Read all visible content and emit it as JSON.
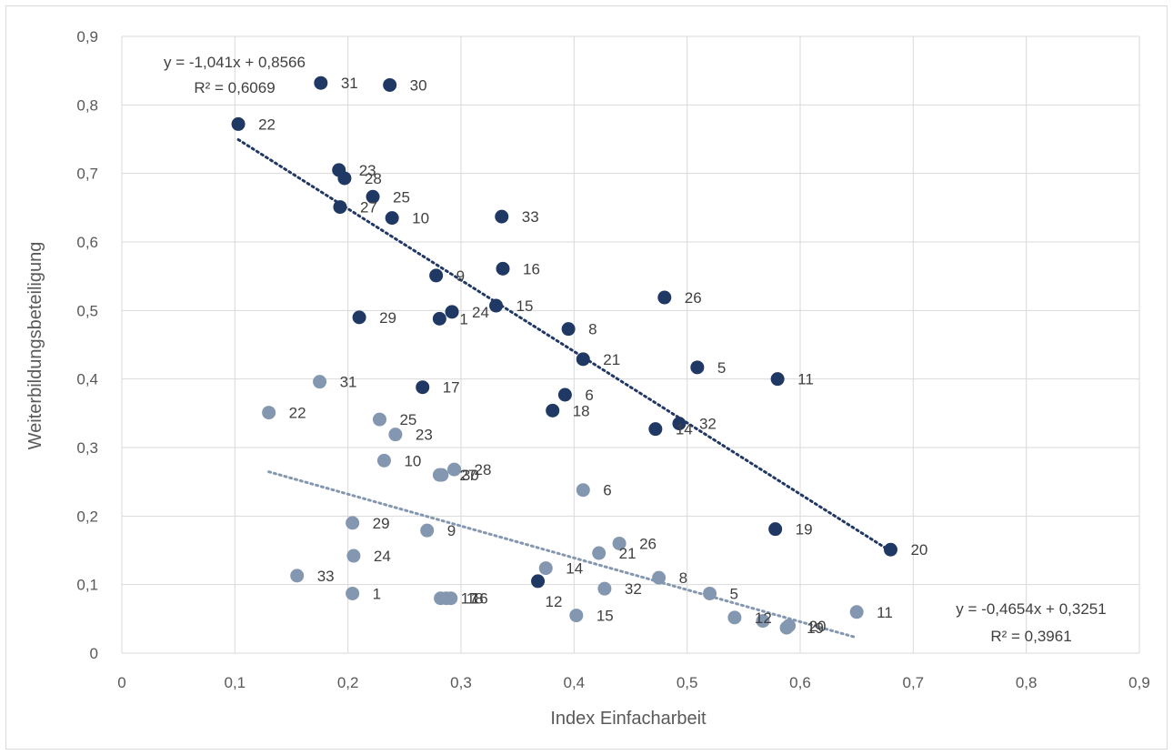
{
  "chart_data": {
    "type": "scatter",
    "title": "",
    "xlabel": "Index Einfacharbeit",
    "ylabel": "Weiterbildungsbeteiligung",
    "xlim": [
      0,
      0.9
    ],
    "ylim": [
      0,
      0.9
    ],
    "x_ticks": [
      "0",
      "0,1",
      "0,2",
      "0,3",
      "0,4",
      "0,5",
      "0,6",
      "0,7",
      "0,8",
      "0,9"
    ],
    "y_ticks": [
      "0",
      "0,1",
      "0,2",
      "0,3",
      "0,4",
      "0,5",
      "0,6",
      "0,7",
      "0,8",
      "0,9"
    ],
    "grid": "horizontal and vertical major gridlines",
    "legend": "none",
    "colors": {
      "dark_series": "#203864",
      "light_series": "#8497b0",
      "grid": "#d9d9d9"
    },
    "series": [
      {
        "color": "#203864",
        "points": [
          {
            "label": "31",
            "x": 0.176,
            "y": 0.832
          },
          {
            "label": "30",
            "x": 0.237,
            "y": 0.829
          },
          {
            "label": "22",
            "x": 0.103,
            "y": 0.772
          },
          {
            "label": "23",
            "x": 0.192,
            "y": 0.705
          },
          {
            "label": "28",
            "x": 0.197,
            "y": 0.693
          },
          {
            "label": "25",
            "x": 0.222,
            "y": 0.666
          },
          {
            "label": "27",
            "x": 0.193,
            "y": 0.651
          },
          {
            "label": "10",
            "x": 0.239,
            "y": 0.635
          },
          {
            "label": "33",
            "x": 0.336,
            "y": 0.637
          },
          {
            "label": "16",
            "x": 0.337,
            "y": 0.561
          },
          {
            "label": "9",
            "x": 0.278,
            "y": 0.551
          },
          {
            "label": "26",
            "x": 0.48,
            "y": 0.519
          },
          {
            "label": "15",
            "x": 0.331,
            "y": 0.507
          },
          {
            "label": "24",
            "x": 0.292,
            "y": 0.498
          },
          {
            "label": "29",
            "x": 0.21,
            "y": 0.49
          },
          {
            "label": "1",
            "x": 0.281,
            "y": 0.488
          },
          {
            "label": "8",
            "x": 0.395,
            "y": 0.473
          },
          {
            "label": "21",
            "x": 0.408,
            "y": 0.429
          },
          {
            "label": "5",
            "x": 0.509,
            "y": 0.417
          },
          {
            "label": "11",
            "x": 0.58,
            "y": 0.4
          },
          {
            "label": "17",
            "x": 0.266,
            "y": 0.388
          },
          {
            "label": "6",
            "x": 0.392,
            "y": 0.377
          },
          {
            "label": "18",
            "x": 0.381,
            "y": 0.354
          },
          {
            "label": "32",
            "x": 0.493,
            "y": 0.335
          },
          {
            "label": "14",
            "x": 0.472,
            "y": 0.327
          },
          {
            "label": "19",
            "x": 0.578,
            "y": 0.181
          },
          {
            "label": "20",
            "x": 0.68,
            "y": 0.151
          },
          {
            "label": "",
            "x": 0.368,
            "y": 0.105
          }
        ],
        "trendline": {
          "equation": "y = -1,041x + 0,8566",
          "r_squared": "R² = 0,6069",
          "slope": -1.041,
          "intercept": 0.8566,
          "x_range": [
            0.103,
            0.68
          ]
        }
      },
      {
        "color": "#8497b0",
        "points": [
          {
            "label": "31",
            "x": 0.175,
            "y": 0.396
          },
          {
            "label": "22",
            "x": 0.13,
            "y": 0.351
          },
          {
            "label": "25",
            "x": 0.228,
            "y": 0.341
          },
          {
            "label": "23",
            "x": 0.242,
            "y": 0.319
          },
          {
            "label": "10",
            "x": 0.232,
            "y": 0.281
          },
          {
            "label": "28",
            "x": 0.294,
            "y": 0.268
          },
          {
            "label": "27",
            "x": 0.281,
            "y": 0.26
          },
          {
            "label": "30",
            "x": 0.283,
            "y": 0.26
          },
          {
            "label": "6",
            "x": 0.408,
            "y": 0.238
          },
          {
            "label": "29",
            "x": 0.204,
            "y": 0.19
          },
          {
            "label": "9",
            "x": 0.27,
            "y": 0.179
          },
          {
            "label": "26",
            "x": 0.44,
            "y": 0.16
          },
          {
            "label": "21",
            "x": 0.422,
            "y": 0.146
          },
          {
            "label": "24",
            "x": 0.205,
            "y": 0.142
          },
          {
            "label": "14",
            "x": 0.375,
            "y": 0.124
          },
          {
            "label": "33",
            "x": 0.155,
            "y": 0.113
          },
          {
            "label": "8",
            "x": 0.475,
            "y": 0.11
          },
          {
            "label": "32",
            "x": 0.427,
            "y": 0.094
          },
          {
            "label": "1",
            "x": 0.204,
            "y": 0.087
          },
          {
            "label": "5",
            "x": 0.52,
            "y": 0.087
          },
          {
            "label": "17",
            "x": 0.282,
            "y": 0.08
          },
          {
            "label": "16",
            "x": 0.291,
            "y": 0.08
          },
          {
            "label": "18",
            "x": 0.287,
            "y": 0.08
          },
          {
            "label": "11",
            "x": 0.65,
            "y": 0.06
          },
          {
            "label": "15",
            "x": 0.402,
            "y": 0.055
          },
          {
            "label": "12",
            "x": 0.542,
            "y": 0.052
          },
          {
            "label": "",
            "x": 0.567,
            "y": 0.047
          },
          {
            "label": "19",
            "x": 0.588,
            "y": 0.037
          },
          {
            "label": "20",
            "x": 0.59,
            "y": 0.04
          }
        ],
        "trendline": {
          "equation": "y = -0,4654x + 0,3251",
          "r_squared": "R² = 0,3961",
          "slope": -0.4654,
          "intercept": 0.3251,
          "x_range": [
            0.13,
            0.65
          ]
        }
      }
    ],
    "extra_labels": [
      {
        "text": "12",
        "x": 0.368,
        "y": 0.105,
        "series_index": 0
      }
    ]
  }
}
